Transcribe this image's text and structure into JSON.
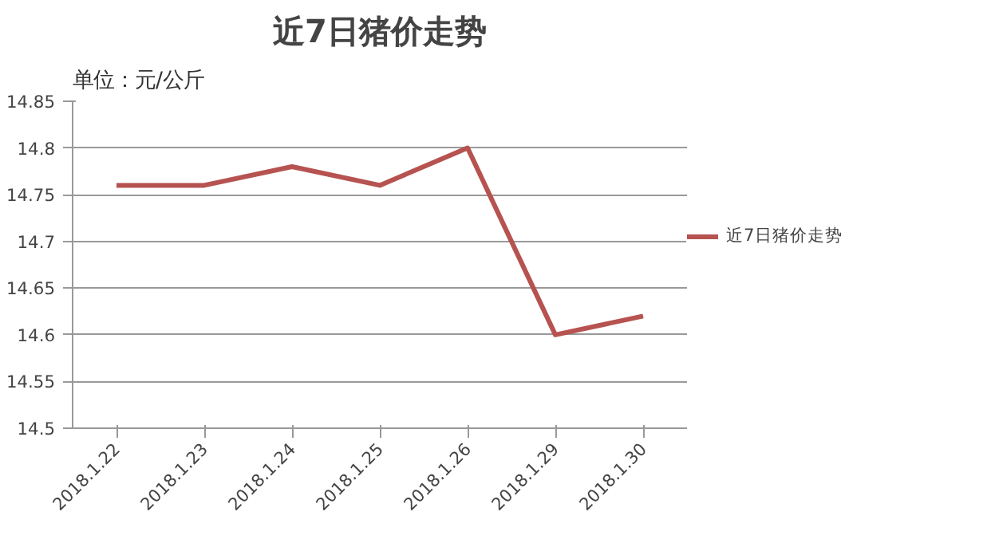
{
  "chart_data": {
    "type": "line",
    "title": "近7日猪价走势",
    "annotations": [
      "单位：元/公斤"
    ],
    "categories": [
      "2018.1.22",
      "2018.1.23",
      "2018.1.24",
      "2018.1.25",
      "2018.1.26",
      "2018.1.29",
      "2018.1.30"
    ],
    "series": [
      {
        "name": "近7日猪价走势",
        "color": "#b65350",
        "values": [
          14.76,
          14.76,
          14.78,
          14.76,
          14.8,
          14.6,
          14.62
        ]
      }
    ],
    "ylim": [
      14.5,
      14.85
    ],
    "yticks": [
      14.5,
      14.55,
      14.6,
      14.65,
      14.7,
      14.75,
      14.8,
      14.85
    ],
    "grid": "y",
    "legend": "right",
    "line_style": "solid"
  }
}
